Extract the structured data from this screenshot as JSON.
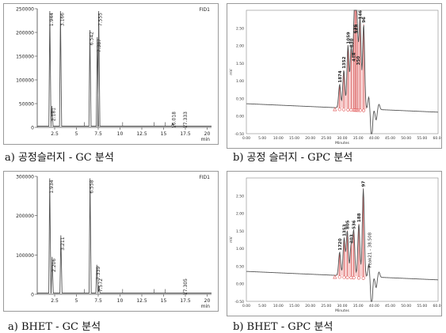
{
  "captions": {
    "a1": "a) 공정슬러지 - GC 분석",
    "b1": "b) 공정 슬러지 - GPC 분석",
    "a2": "a) BHET - GC 분석",
    "b2": "b) BHET - GPC 분석"
  },
  "colors": {
    "trace": "#555555",
    "axis": "#444444",
    "gpc_fill": "#f0a8a8",
    "gpc_marker": "#e05050"
  },
  "chart_data": [
    {
      "id": "gc1",
      "type": "line",
      "chart_title": "",
      "instrument_label": "FID1",
      "xunit": "min",
      "xlim": [
        0.5,
        20.5
      ],
      "ylim": [
        0,
        250000
      ],
      "x_ticks": [
        2.5,
        5,
        7.5,
        10,
        12.5,
        15,
        17.5,
        20
      ],
      "y_ticks": [
        0,
        50000,
        100000,
        150000,
        200000,
        250000
      ],
      "peaks": [
        {
          "rt": 1.944,
          "height": 245000,
          "label": "1.944"
        },
        {
          "rt": 2.181,
          "height": 45000,
          "label": "2.181"
        },
        {
          "rt": 3.166,
          "height": 245000,
          "label": "3.166"
        },
        {
          "rt": 6.542,
          "height": 205000,
          "label": "6.542"
        },
        {
          "rt": 7.387,
          "height": 190000,
          "label": "7.387"
        },
        {
          "rt": 7.555,
          "height": 245000,
          "label": "7.555"
        },
        {
          "rt": 16.018,
          "height": 8000,
          "label": "16.018"
        },
        {
          "rt": 17.333,
          "height": 4000,
          "label": "17.333"
        }
      ]
    },
    {
      "id": "gpc1",
      "type": "line",
      "xunit": "Minutes",
      "yunit": "mV",
      "xlim": [
        0,
        60
      ],
      "ylim": [
        -0.5,
        3.0
      ],
      "x_ticks": [
        0,
        5,
        10,
        15,
        20,
        25,
        30,
        35,
        40,
        45,
        50,
        55,
        60
      ],
      "y_ticks": [
        -0.5,
        0.0,
        0.5,
        1.0,
        1.5,
        2.0,
        2.5
      ],
      "peaks": [
        {
          "rt": 29.2,
          "height": 0.9,
          "label": "1874"
        },
        {
          "rt": 30.5,
          "height": 1.3,
          "label": "1352"
        },
        {
          "rt": 31.8,
          "height": 2.0,
          "label": "1059"
        },
        {
          "rt": 32.8,
          "height": 1.9,
          "label": "830"
        },
        {
          "rt": 33.6,
          "height": 1.5,
          "label": "414"
        },
        {
          "rt": 34.0,
          "height": 2.3,
          "label": "626"
        },
        {
          "rt": 34.4,
          "height": 2.3,
          "label": "528"
        },
        {
          "rt": 34.9,
          "height": 1.4,
          "label": "350"
        },
        {
          "rt": 35.6,
          "height": 2.7,
          "label": "146"
        },
        {
          "rt": 36.7,
          "height": 2.6,
          "label": "96"
        }
      ]
    },
    {
      "id": "gc2",
      "type": "line",
      "chart_title": "",
      "instrument_label": "FID1",
      "xunit": "min",
      "xlim": [
        0.5,
        20.5
      ],
      "ylim": [
        0,
        300000
      ],
      "x_ticks": [
        2.5,
        5,
        7.5,
        10,
        12.5,
        15,
        17.5,
        20
      ],
      "y_ticks": [
        0,
        100000,
        200000,
        300000
      ],
      "peaks": [
        {
          "rt": 1.934,
          "height": 295000,
          "label": "1.934"
        },
        {
          "rt": 2.206,
          "height": 95000,
          "label": "2.206"
        },
        {
          "rt": 3.211,
          "height": 150000,
          "label": "3.211"
        },
        {
          "rt": 6.558,
          "height": 295000,
          "label": "6.558"
        },
        {
          "rt": 7.339,
          "height": 75000,
          "label": "7.339"
        },
        {
          "rt": 7.572,
          "height": 22000,
          "label": "7.572"
        },
        {
          "rt": 17.305,
          "height": 5000,
          "label": "17.305"
        }
      ]
    },
    {
      "id": "gpc2",
      "type": "line",
      "xunit": "Minutes",
      "yunit": "mV",
      "xlim": [
        0,
        60
      ],
      "ylim": [
        -0.5,
        3.0
      ],
      "x_ticks": [
        0,
        5,
        10,
        15,
        20,
        25,
        30,
        35,
        40,
        45,
        50,
        55,
        60
      ],
      "y_ticks": [
        -0.5,
        0.0,
        0.5,
        1.0,
        1.5,
        2.0,
        2.5
      ],
      "peaks": [
        {
          "rt": 29.2,
          "height": 0.9,
          "label": "1720"
        },
        {
          "rt": 30.6,
          "height": 1.3,
          "label": "1353"
        },
        {
          "rt": 31.6,
          "height": 1.5,
          "label": "805"
        },
        {
          "rt": 32.8,
          "height": 1.1,
          "label": "303"
        },
        {
          "rt": 33.6,
          "height": 1.5,
          "label": "536"
        },
        {
          "rt": 35.2,
          "height": 1.7,
          "label": "188"
        },
        {
          "rt": 36.6,
          "height": 2.7,
          "label": "97"
        }
      ],
      "annotation": "Peak21 - 38.508"
    }
  ]
}
